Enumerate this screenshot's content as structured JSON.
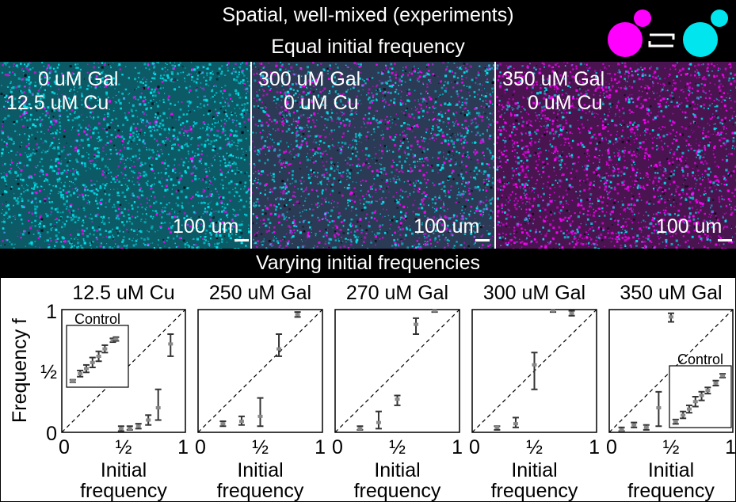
{
  "header": {
    "title_line1": "Spatial, well-mixed (experiments)",
    "title_line2": "Equal initial frequency",
    "icon": "magenta-cyan-cells-equilibrium-icon",
    "colors": {
      "magenta": "#ff00ff",
      "cyan": "#00e5ee"
    }
  },
  "micrographs": [
    {
      "gal": "0 uM Gal",
      "cu": "12.5 uM Cu",
      "scale": "100 um",
      "tint": "cyan"
    },
    {
      "gal": "300 uM Gal",
      "cu": "0 uM Cu",
      "scale": "100 um",
      "tint": "mixed"
    },
    {
      "gal": "350 uM Gal",
      "cu": "0 uM Cu",
      "scale": "100 um",
      "tint": "magenta"
    }
  ],
  "section_title": "Varying initial frequencies",
  "y_axis": {
    "label": "Frequency f",
    "ticks": [
      "0",
      "½",
      "1"
    ]
  },
  "x_axis": {
    "label_line1": "Initial",
    "label_line2": "frequency",
    "ticks": [
      "0",
      "½",
      "1"
    ]
  },
  "chart_data": [
    {
      "type": "scatter",
      "title": "12.5 uM Cu",
      "xlim": [
        0,
        1
      ],
      "ylim": [
        0,
        1
      ],
      "inset": {
        "label": "Control",
        "location": "top-left",
        "points": [
          {
            "x": 0.1,
            "y": 0.1,
            "lo": 0.08,
            "hi": 0.12
          },
          {
            "x": 0.22,
            "y": 0.22,
            "lo": 0.17,
            "hi": 0.27
          },
          {
            "x": 0.32,
            "y": 0.3,
            "lo": 0.24,
            "hi": 0.36
          },
          {
            "x": 0.42,
            "y": 0.4,
            "lo": 0.32,
            "hi": 0.48
          },
          {
            "x": 0.52,
            "y": 0.5,
            "lo": 0.42,
            "hi": 0.58
          },
          {
            "x": 0.62,
            "y": 0.62,
            "lo": 0.56,
            "hi": 0.68
          },
          {
            "x": 0.75,
            "y": 0.76,
            "lo": 0.73,
            "hi": 0.79
          },
          {
            "x": 0.8,
            "y": 0.78,
            "lo": 0.75,
            "hi": 0.81
          }
        ]
      },
      "points": [
        {
          "x": 0.48,
          "y": 0.03,
          "lo": 0.01,
          "hi": 0.05
        },
        {
          "x": 0.55,
          "y": 0.03,
          "lo": 0.02,
          "hi": 0.05
        },
        {
          "x": 0.62,
          "y": 0.05,
          "lo": 0.03,
          "hi": 0.07
        },
        {
          "x": 0.7,
          "y": 0.1,
          "lo": 0.06,
          "hi": 0.14
        },
        {
          "x": 0.78,
          "y": 0.2,
          "lo": 0.1,
          "hi": 0.35
        },
        {
          "x": 0.88,
          "y": 0.72,
          "lo": 0.62,
          "hi": 0.8
        }
      ]
    },
    {
      "type": "scatter",
      "title": "250 uM Gal",
      "xlim": [
        0,
        1
      ],
      "ylim": [
        0,
        1
      ],
      "points": [
        {
          "x": 0.2,
          "y": 0.07,
          "lo": 0.05,
          "hi": 0.09
        },
        {
          "x": 0.35,
          "y": 0.09,
          "lo": 0.06,
          "hi": 0.13
        },
        {
          "x": 0.5,
          "y": 0.13,
          "lo": 0.05,
          "hi": 0.28
        },
        {
          "x": 0.65,
          "y": 0.68,
          "lo": 0.62,
          "hi": 0.8
        },
        {
          "x": 0.8,
          "y": 0.96,
          "lo": 0.94,
          "hi": 0.98
        }
      ]
    },
    {
      "type": "scatter",
      "title": "270 uM Gal",
      "xlim": [
        0,
        1
      ],
      "ylim": [
        0,
        1
      ],
      "points": [
        {
          "x": 0.2,
          "y": 0.03,
          "lo": 0.02,
          "hi": 0.05
        },
        {
          "x": 0.35,
          "y": 0.08,
          "lo": 0.03,
          "hi": 0.17
        },
        {
          "x": 0.5,
          "y": 0.27,
          "lo": 0.22,
          "hi": 0.3
        },
        {
          "x": 0.65,
          "y": 0.88,
          "lo": 0.8,
          "hi": 0.93
        },
        {
          "x": 0.8,
          "y": 0.99,
          "lo": 0.98,
          "hi": 1.0
        }
      ]
    },
    {
      "type": "scatter",
      "title": "300 uM Gal",
      "xlim": [
        0,
        1
      ],
      "ylim": [
        0,
        1
      ],
      "points": [
        {
          "x": 0.2,
          "y": 0.04,
          "lo": 0.02,
          "hi": 0.05
        },
        {
          "x": 0.35,
          "y": 0.07,
          "lo": 0.04,
          "hi": 0.12
        },
        {
          "x": 0.5,
          "y": 0.55,
          "lo": 0.35,
          "hi": 0.65
        },
        {
          "x": 0.65,
          "y": 0.99,
          "lo": 0.98,
          "hi": 1.0
        },
        {
          "x": 0.8,
          "y": 0.97,
          "lo": 0.95,
          "hi": 0.99
        }
      ]
    },
    {
      "type": "scatter",
      "title": "350 uM Gal",
      "xlim": [
        0,
        1
      ],
      "ylim": [
        0,
        1
      ],
      "inset": {
        "label": "Control",
        "location": "bottom-right",
        "points": [
          {
            "x": 0.1,
            "y": 0.1,
            "lo": 0.06,
            "hi": 0.13
          },
          {
            "x": 0.22,
            "y": 0.2,
            "lo": 0.15,
            "hi": 0.26
          },
          {
            "x": 0.32,
            "y": 0.3,
            "lo": 0.24,
            "hi": 0.36
          },
          {
            "x": 0.42,
            "y": 0.42,
            "lo": 0.34,
            "hi": 0.5
          },
          {
            "x": 0.52,
            "y": 0.52,
            "lo": 0.44,
            "hi": 0.58
          },
          {
            "x": 0.62,
            "y": 0.6,
            "lo": 0.55,
            "hi": 0.65
          },
          {
            "x": 0.75,
            "y": 0.72,
            "lo": 0.68,
            "hi": 0.76
          },
          {
            "x": 0.86,
            "y": 0.84,
            "lo": 0.81,
            "hi": 0.87
          }
        ]
      },
      "points": [
        {
          "x": 0.1,
          "y": 0.02,
          "lo": 0.01,
          "hi": 0.04
        },
        {
          "x": 0.2,
          "y": 0.06,
          "lo": 0.04,
          "hi": 0.08
        },
        {
          "x": 0.3,
          "y": 0.04,
          "lo": 0.02,
          "hi": 0.06
        },
        {
          "x": 0.4,
          "y": 0.2,
          "lo": 0.05,
          "hi": 0.33
        },
        {
          "x": 0.5,
          "y": 0.94,
          "lo": 0.9,
          "hi": 0.97
        }
      ]
    }
  ]
}
